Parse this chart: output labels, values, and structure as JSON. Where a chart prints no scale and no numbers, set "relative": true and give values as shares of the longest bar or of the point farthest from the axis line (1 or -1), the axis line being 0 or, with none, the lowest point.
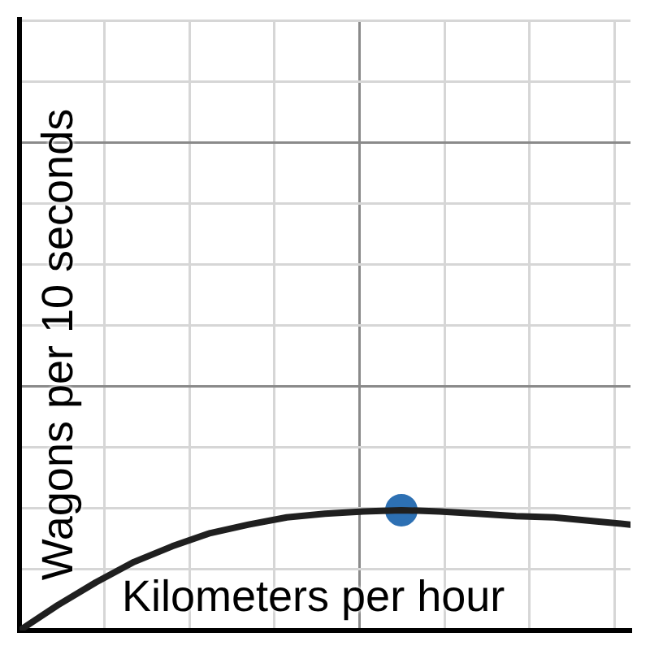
{
  "chart_data": {
    "type": "line",
    "relative": true,
    "xlabel": "Kilometers per hour",
    "ylabel": "Wagons per 10 seconds",
    "grid": true,
    "categories": [
      null,
      null,
      null,
      null,
      null,
      null,
      null,
      null,
      null,
      null,
      null,
      null,
      null,
      null,
      null,
      null,
      null
    ],
    "series": [
      {
        "type": "line",
        "color": "#1f1f1f",
        "marker": "none",
        "line_style": "solid",
        "values": [
          0,
          0.21,
          0.4,
          0.57,
          0.7,
          0.81,
          0.88,
          0.94,
          0.97,
          0.99,
          1,
          0.99,
          0.97,
          0.95,
          0.94,
          0.91,
          0.88
        ]
      },
      {
        "type": "line",
        "color": "#2d70b3",
        "marker": "circle",
        "values": [
          null,
          null,
          null,
          null,
          null,
          null,
          null,
          null,
          null,
          null,
          1,
          null,
          null,
          null,
          null,
          null,
          null
        ]
      }
    ]
  }
}
